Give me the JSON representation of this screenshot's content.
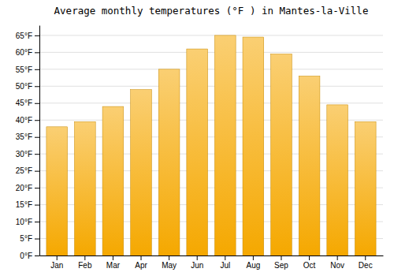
{
  "chart_data": {
    "type": "bar",
    "title": "Average monthly temperatures (°F ) in Mantes-la-Ville",
    "categories": [
      "Jan",
      "Feb",
      "Mar",
      "Apr",
      "May",
      "Jun",
      "Jul",
      "Aug",
      "Sep",
      "Oct",
      "Nov",
      "Dec"
    ],
    "values": [
      38.0,
      39.5,
      44.0,
      49.0,
      55.0,
      61.0,
      65.0,
      64.5,
      59.5,
      53.0,
      44.5,
      39.5
    ],
    "color": "#F5A800",
    "ylim": [
      0,
      68
    ],
    "yticks": [
      {
        "value": 0,
        "label": "0°F"
      },
      {
        "value": 5,
        "label": "5°F"
      },
      {
        "value": 10,
        "label": "10°F"
      },
      {
        "value": 15,
        "label": "15°F"
      },
      {
        "value": 20,
        "label": "20°F"
      },
      {
        "value": 25,
        "label": "25°F"
      },
      {
        "value": 30,
        "label": "30°F"
      },
      {
        "value": 35,
        "label": "35°F"
      },
      {
        "value": 40,
        "label": "40°F"
      },
      {
        "value": 45,
        "label": "45°F"
      },
      {
        "value": 50,
        "label": "50°F"
      },
      {
        "value": 55,
        "label": "55°F"
      },
      {
        "value": 60,
        "label": "60°F"
      },
      {
        "value": 65,
        "label": "65°F"
      }
    ],
    "grid": true
  }
}
